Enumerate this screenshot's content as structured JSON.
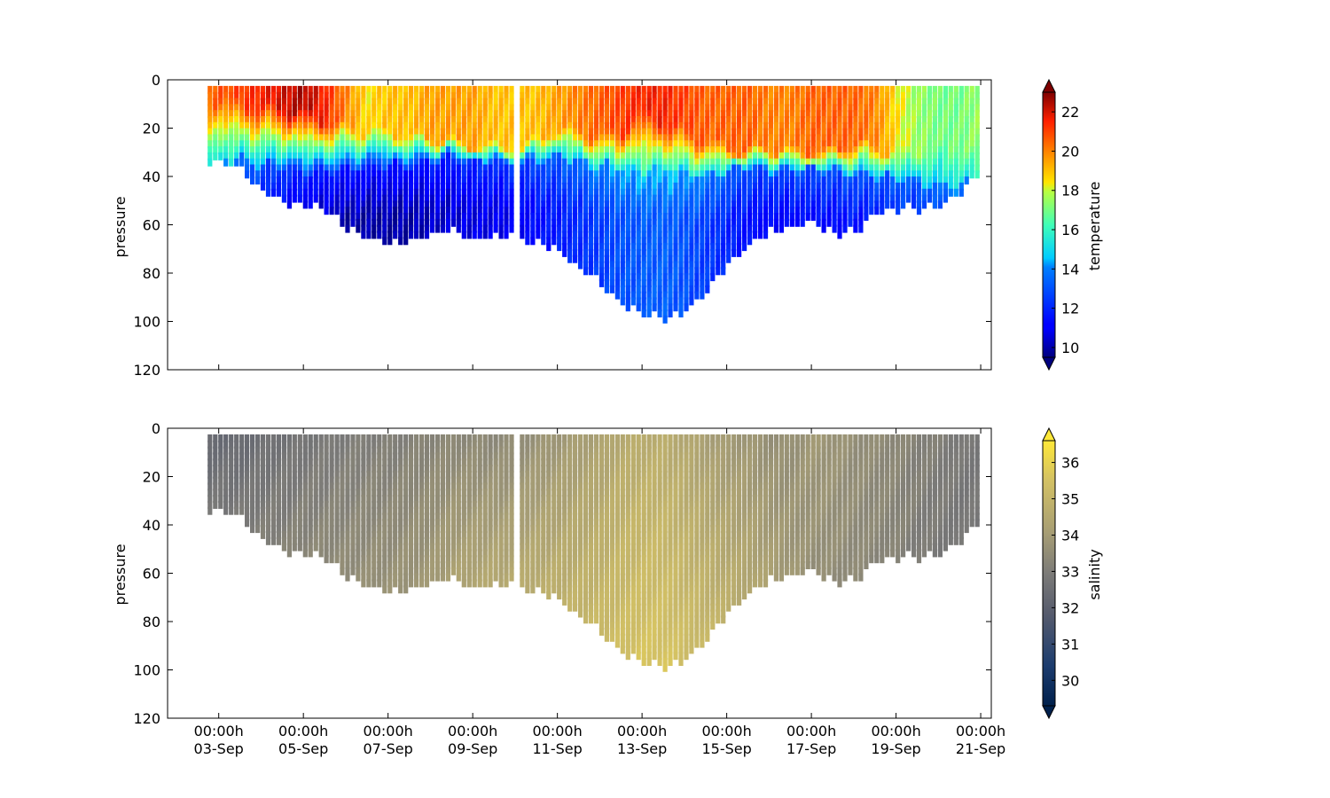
{
  "chart_data": [
    {
      "type": "scatter",
      "ylabel": "pressure",
      "ylim": [
        120,
        0
      ],
      "yticks": [
        0,
        20,
        40,
        60,
        80,
        100,
        120
      ],
      "xlim": [
        "2017-09-01T19:00",
        "2017-09-21T06:00"
      ],
      "xticks": [
        {
          "date": "2017-09-03T00:00",
          "line1": "00:00h",
          "line2": "03-Sep"
        },
        {
          "date": "2017-09-05T00:00",
          "line1": "00:00h",
          "line2": "05-Sep"
        },
        {
          "date": "2017-09-07T00:00",
          "line1": "00:00h",
          "line2": "07-Sep"
        },
        {
          "date": "2017-09-09T00:00",
          "line1": "00:00h",
          "line2": "09-Sep"
        },
        {
          "date": "2017-09-11T00:00",
          "line1": "00:00h",
          "line2": "11-Sep"
        },
        {
          "date": "2017-09-13T00:00",
          "line1": "00:00h",
          "line2": "13-Sep"
        },
        {
          "date": "2017-09-15T00:00",
          "line1": "00:00h",
          "line2": "15-Sep"
        },
        {
          "date": "2017-09-17T00:00",
          "line1": "00:00h",
          "line2": "17-Sep"
        },
        {
          "date": "2017-09-19T00:00",
          "line1": "00:00h",
          "line2": "19-Sep"
        },
        {
          "date": "2017-09-21T00:00",
          "line1": "00:00h",
          "line2": "21-Sep"
        }
      ],
      "colorbar": {
        "label": "temperature",
        "range": [
          9.5,
          23
        ],
        "ticks": [
          10,
          12,
          14,
          16,
          18,
          20,
          22
        ],
        "colormap": "jet"
      },
      "gap_date": "2017-09-10T02:00",
      "profile_bottom": {
        "dates": [
          "2017-09-02T19:00",
          "2017-09-03T12:00",
          "2017-09-04T00:00",
          "2017-09-04T12:00",
          "2017-09-05T00:00",
          "2017-09-05T12:00",
          "2017-09-06T00:00",
          "2017-09-06T12:00",
          "2017-09-07T00:00",
          "2017-09-07T12:00",
          "2017-09-08T00:00",
          "2017-09-08T12:00",
          "2017-09-09T00:00",
          "2017-09-09T12:00",
          "2017-09-10T02:00",
          "2017-09-10T12:00",
          "2017-09-11T00:00",
          "2017-09-11T12:00",
          "2017-09-12T00:00",
          "2017-09-12T12:00",
          "2017-09-13T00:00",
          "2017-09-13T12:00",
          "2017-09-14T00:00",
          "2017-09-14T12:00",
          "2017-09-15T00:00",
          "2017-09-15T12:00",
          "2017-09-16T00:00",
          "2017-09-16T12:00",
          "2017-09-17T00:00",
          "2017-09-17T12:00",
          "2017-09-18T00:00",
          "2017-09-18T12:00",
          "2017-09-19T00:00",
          "2017-09-19T12:00",
          "2017-09-20T00:00",
          "2017-09-20T12:00",
          "2017-09-20T23:00"
        ],
        "pressure": [
          34,
          36,
          46,
          51,
          52,
          53,
          61,
          65,
          68,
          67,
          63,
          62,
          66,
          65,
          65,
          68,
          70,
          78,
          84,
          92,
          97,
          98,
          96,
          88,
          77,
          68,
          63,
          61,
          59,
          63,
          63,
          55,
          53,
          53,
          52,
          47,
          38
        ]
      },
      "profile_top": 3,
      "temperature_structure": {
        "surface": [
          20.5,
          21,
          21.5,
          22,
          22.5,
          21.5,
          20,
          18.5,
          19,
          19,
          19.5,
          19.5,
          19.5,
          19,
          19,
          19,
          19.5,
          20,
          20.5,
          21,
          21.5,
          21.5,
          21,
          20.5,
          20.5,
          20.5,
          20,
          20,
          20.5,
          20.5,
          20.5,
          20,
          18.5,
          17.5,
          17,
          17,
          17.5
        ],
        "thermocline_top": [
          8,
          10,
          12,
          12,
          14,
          17,
          20,
          22,
          22,
          24,
          24,
          26,
          28,
          28,
          28,
          26,
          20,
          22,
          24,
          22,
          14,
          18,
          22,
          26,
          28,
          30,
          28,
          30,
          30,
          30,
          26,
          28,
          30,
          30,
          28,
          28,
          30
        ],
        "thermocline_bottom": [
          34,
          32,
          36,
          36,
          38,
          38,
          38,
          36,
          36,
          36,
          34,
          32,
          34,
          34,
          34,
          34,
          32,
          34,
          36,
          36,
          38,
          36,
          38,
          40,
          38,
          36,
          38,
          38,
          38,
          38,
          40,
          40,
          42,
          42,
          44,
          44,
          40
        ],
        "deep": [
          13,
          12.5,
          11.5,
          11,
          10.5,
          10.2,
          10,
          10,
          10,
          10,
          10.3,
          10.5,
          10.7,
          10.8,
          11,
          11.4,
          11.8,
          12.2,
          12.6,
          13,
          13.2,
          13.3,
          13,
          12.5,
          12,
          11.5,
          11.2,
          11.2,
          11.3,
          11.3,
          11.5,
          11.5,
          11.8,
          11.8,
          12.3,
          12.6,
          13
        ]
      }
    },
    {
      "type": "scatter",
      "ylabel": "pressure",
      "ylim": [
        120,
        0
      ],
      "yticks": [
        0,
        20,
        40,
        60,
        80,
        100,
        120
      ],
      "colorbar": {
        "label": "salinity",
        "range": [
          29.3,
          36.6
        ],
        "ticks": [
          30,
          31,
          32,
          33,
          34,
          35,
          36
        ],
        "colormap": "cividis"
      },
      "salinity_structure": {
        "surface": [
          32.3,
          32.3,
          32.5,
          32.6,
          32.7,
          32.8,
          32.9,
          33,
          33,
          33.1,
          33.2,
          33.3,
          33.3,
          33.3,
          33.4,
          33.6,
          33.8,
          34,
          34.2,
          34.5,
          34.6,
          34.6,
          34.4,
          34.1,
          33.9,
          33.8,
          33.6,
          33.6,
          33.9,
          33.8,
          33.6,
          33.5,
          33.4,
          33.2,
          33.1,
          32.9,
          32.8
        ],
        "deep": [
          32.8,
          32.9,
          33.1,
          33.2,
          33.3,
          33.4,
          33.5,
          33.6,
          33.7,
          33.8,
          33.9,
          34.2,
          34.4,
          34.5,
          34.6,
          34.7,
          34.8,
          35,
          35.2,
          35.4,
          35.6,
          35.6,
          35.4,
          35.1,
          34.8,
          34.5,
          34.2,
          33.9,
          33.6,
          33.5,
          33.4,
          33.3,
          33.2,
          33,
          32.9,
          32.8,
          32.8
        ]
      }
    }
  ]
}
